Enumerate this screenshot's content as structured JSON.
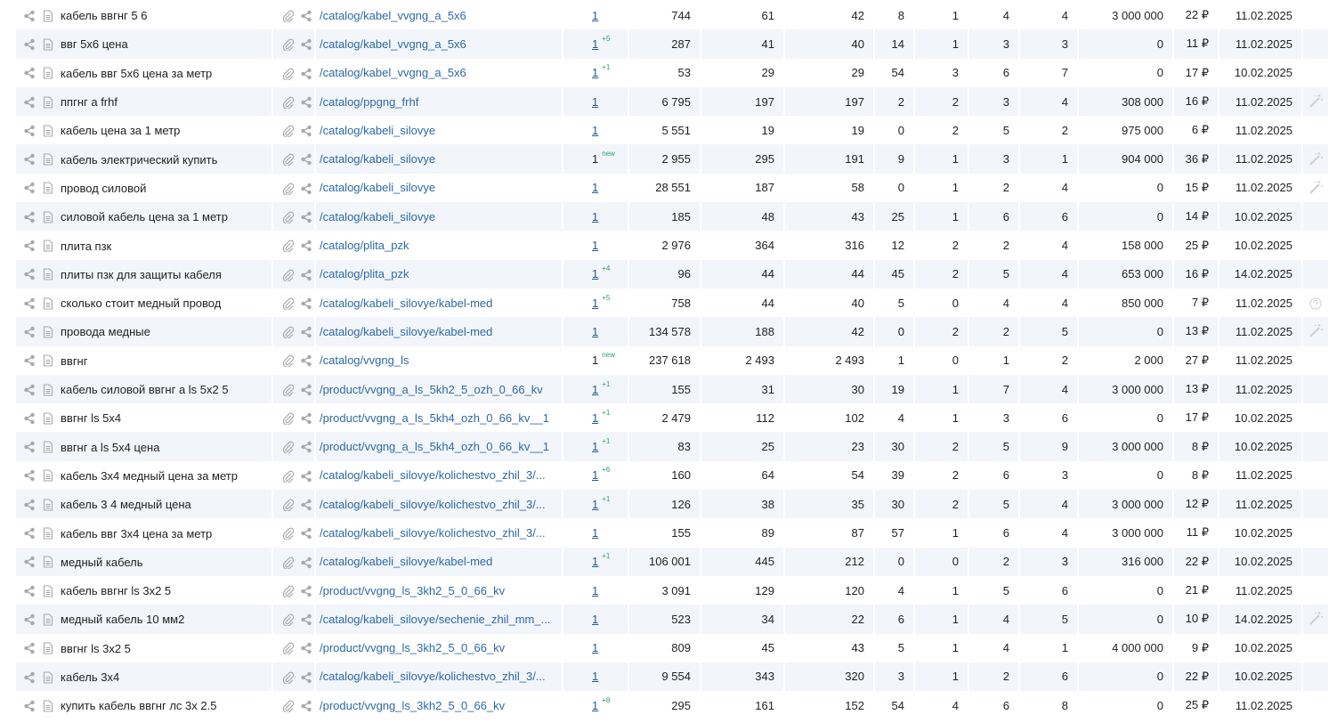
{
  "rows": [
    {
      "keyword": "кабель ввгнг 5 6",
      "url": "/catalog/kabel_vvgng_a_5x6",
      "pos": "1",
      "pos_link": true,
      "delta": "",
      "c1": "744",
      "c2": "61",
      "c3": "42",
      "c4": "8",
      "c5": "1",
      "c6": "4",
      "c7": "4",
      "c8": "3 000 000",
      "price": "22 ₽",
      "date": "11.02.2025",
      "extra": ""
    },
    {
      "keyword": "ввг 5х6 цена",
      "url": "/catalog/kabel_vvgng_a_5x6",
      "pos": "1",
      "pos_link": true,
      "delta": "+5",
      "c1": "287",
      "c2": "41",
      "c3": "40",
      "c4": "14",
      "c5": "1",
      "c6": "3",
      "c7": "3",
      "c8": "0",
      "price": "11 ₽",
      "date": "11.02.2025",
      "extra": ""
    },
    {
      "keyword": "кабель ввг 5х6 цена за метр",
      "url": "/catalog/kabel_vvgng_a_5x6",
      "pos": "1",
      "pos_link": true,
      "delta": "+1",
      "c1": "53",
      "c2": "29",
      "c3": "29",
      "c4": "54",
      "c5": "3",
      "c6": "6",
      "c7": "7",
      "c8": "0",
      "price": "17 ₽",
      "date": "10.02.2025",
      "extra": ""
    },
    {
      "keyword": "ппгнг а frhf",
      "url": "/catalog/ppgng_frhf",
      "pos": "1",
      "pos_link": true,
      "delta": "",
      "c1": "6 795",
      "c2": "197",
      "c3": "197",
      "c4": "2",
      "c5": "2",
      "c6": "3",
      "c7": "4",
      "c8": "308 000",
      "price": "16 ₽",
      "date": "11.02.2025",
      "extra": "wand"
    },
    {
      "keyword": "кабель цена за 1 метр",
      "url": "/catalog/kabeli_silovye",
      "pos": "1",
      "pos_link": true,
      "delta": "",
      "c1": "5 551",
      "c2": "19",
      "c3": "19",
      "c4": "0",
      "c5": "2",
      "c6": "5",
      "c7": "2",
      "c8": "975 000",
      "price": "6 ₽",
      "date": "11.02.2025",
      "extra": ""
    },
    {
      "keyword": "кабель электрический купить",
      "url": "/catalog/kabeli_silovye",
      "pos": "1",
      "pos_link": false,
      "delta": "new",
      "c1": "2 955",
      "c2": "295",
      "c3": "191",
      "c4": "9",
      "c5": "1",
      "c6": "3",
      "c7": "1",
      "c8": "904 000",
      "price": "36 ₽",
      "date": "11.02.2025",
      "extra": "wand"
    },
    {
      "keyword": "провод силовой",
      "url": "/catalog/kabeli_silovye",
      "pos": "1",
      "pos_link": true,
      "delta": "",
      "c1": "28 551",
      "c2": "187",
      "c3": "58",
      "c4": "0",
      "c5": "1",
      "c6": "2",
      "c7": "4",
      "c8": "0",
      "price": "15 ₽",
      "date": "11.02.2025",
      "extra": "wand"
    },
    {
      "keyword": "силовой кабель цена за 1 метр",
      "url": "/catalog/kabeli_silovye",
      "pos": "1",
      "pos_link": true,
      "delta": "",
      "c1": "185",
      "c2": "48",
      "c3": "43",
      "c4": "25",
      "c5": "1",
      "c6": "6",
      "c7": "6",
      "c8": "0",
      "price": "14 ₽",
      "date": "10.02.2025",
      "extra": ""
    },
    {
      "keyword": "плита пзк",
      "url": "/catalog/plita_pzk",
      "pos": "1",
      "pos_link": true,
      "delta": "",
      "c1": "2 976",
      "c2": "364",
      "c3": "316",
      "c4": "12",
      "c5": "2",
      "c6": "2",
      "c7": "4",
      "c8": "158 000",
      "price": "25 ₽",
      "date": "10.02.2025",
      "extra": ""
    },
    {
      "keyword": "плиты пзк для защиты кабеля",
      "url": "/catalog/plita_pzk",
      "pos": "1",
      "pos_link": true,
      "delta": "+4",
      "c1": "96",
      "c2": "44",
      "c3": "44",
      "c4": "45",
      "c5": "2",
      "c6": "5",
      "c7": "4",
      "c8": "653 000",
      "price": "16 ₽",
      "date": "14.02.2025",
      "extra": ""
    },
    {
      "keyword": "сколько стоит медный провод",
      "url": "/catalog/kabeli_silovye/kabel-med",
      "pos": "1",
      "pos_link": true,
      "delta": "+5",
      "c1": "758",
      "c2": "44",
      "c3": "40",
      "c4": "5",
      "c5": "0",
      "c6": "4",
      "c7": "4",
      "c8": "850 000",
      "price": "7 ₽",
      "date": "11.02.2025",
      "extra": "help"
    },
    {
      "keyword": "провода медные",
      "url": "/catalog/kabeli_silovye/kabel-med",
      "pos": "1",
      "pos_link": true,
      "delta": "",
      "c1": "134 578",
      "c2": "188",
      "c3": "42",
      "c4": "0",
      "c5": "2",
      "c6": "2",
      "c7": "5",
      "c8": "0",
      "price": "13 ₽",
      "date": "11.02.2025",
      "extra": "wand"
    },
    {
      "keyword": "ввгнг",
      "url": "/catalog/vvgng_ls",
      "pos": "1",
      "pos_link": false,
      "delta": "new",
      "c1": "237 618",
      "c2": "2 493",
      "c3": "2 493",
      "c4": "1",
      "c5": "0",
      "c6": "1",
      "c7": "2",
      "c8": "2 000",
      "price": "27 ₽",
      "date": "11.02.2025",
      "extra": ""
    },
    {
      "keyword": "кабель силовой ввгнг а ls 5х2 5",
      "url": "/product/vvgng_a_ls_5kh2_5_ozh_0_66_kv",
      "pos": "1",
      "pos_link": true,
      "delta": "+1",
      "c1": "155",
      "c2": "31",
      "c3": "30",
      "c4": "19",
      "c5": "1",
      "c6": "7",
      "c7": "4",
      "c8": "3 000 000",
      "price": "13 ₽",
      "date": "11.02.2025",
      "extra": ""
    },
    {
      "keyword": "ввгнг ls 5х4",
      "url": "/product/vvgng_a_ls_5kh4_ozh_0_66_kv__1",
      "pos": "1",
      "pos_link": true,
      "delta": "+1",
      "c1": "2 479",
      "c2": "112",
      "c3": "102",
      "c4": "4",
      "c5": "1",
      "c6": "3",
      "c7": "6",
      "c8": "0",
      "price": "17 ₽",
      "date": "10.02.2025",
      "extra": ""
    },
    {
      "keyword": "ввгнг а ls 5х4 цена",
      "url": "/product/vvgng_a_ls_5kh4_ozh_0_66_kv__1",
      "pos": "1",
      "pos_link": true,
      "delta": "+1",
      "c1": "83",
      "c2": "25",
      "c3": "23",
      "c4": "30",
      "c5": "2",
      "c6": "5",
      "c7": "9",
      "c8": "3 000 000",
      "price": "8 ₽",
      "date": "10.02.2025",
      "extra": ""
    },
    {
      "keyword": "кабель 3х4 медный цена за метр",
      "url": "/catalog/kabeli_silovye/kolichestvo_zhil_3/...",
      "pos": "1",
      "pos_link": true,
      "delta": "+6",
      "c1": "160",
      "c2": "64",
      "c3": "54",
      "c4": "39",
      "c5": "2",
      "c6": "6",
      "c7": "3",
      "c8": "0",
      "price": "8 ₽",
      "date": "11.02.2025",
      "extra": ""
    },
    {
      "keyword": "кабель 3 4 медный цена",
      "url": "/catalog/kabeli_silovye/kolichestvo_zhil_3/...",
      "pos": "1",
      "pos_link": true,
      "delta": "+1",
      "c1": "126",
      "c2": "38",
      "c3": "35",
      "c4": "30",
      "c5": "2",
      "c6": "5",
      "c7": "4",
      "c8": "3 000 000",
      "price": "12 ₽",
      "date": "11.02.2025",
      "extra": ""
    },
    {
      "keyword": "кабель ввг 3х4 цена за метр",
      "url": "/catalog/kabeli_silovye/kolichestvo_zhil_3/...",
      "pos": "1",
      "pos_link": true,
      "delta": "",
      "c1": "155",
      "c2": "89",
      "c3": "87",
      "c4": "57",
      "c5": "1",
      "c6": "6",
      "c7": "4",
      "c8": "3 000 000",
      "price": "11 ₽",
      "date": "10.02.2025",
      "extra": ""
    },
    {
      "keyword": "медный кабель",
      "url": "/catalog/kabeli_silovye/kabel-med",
      "pos": "1",
      "pos_link": true,
      "delta": "+1",
      "c1": "106 001",
      "c2": "445",
      "c3": "212",
      "c4": "0",
      "c5": "0",
      "c6": "2",
      "c7": "3",
      "c8": "316 000",
      "price": "22 ₽",
      "date": "10.02.2025",
      "extra": ""
    },
    {
      "keyword": "кабель ввгнг ls 3х2 5",
      "url": "/product/vvgng_ls_3kh2_5_0_66_kv",
      "pos": "1",
      "pos_link": true,
      "delta": "",
      "c1": "3 091",
      "c2": "129",
      "c3": "120",
      "c4": "4",
      "c5": "1",
      "c6": "5",
      "c7": "6",
      "c8": "0",
      "price": "21 ₽",
      "date": "11.02.2025",
      "extra": ""
    },
    {
      "keyword": "медный кабель 10 мм2",
      "url": "/catalog/kabeli_silovye/sechenie_zhil_mm_...",
      "pos": "1",
      "pos_link": true,
      "delta": "",
      "c1": "523",
      "c2": "34",
      "c3": "22",
      "c4": "6",
      "c5": "1",
      "c6": "4",
      "c7": "5",
      "c8": "0",
      "price": "10 ₽",
      "date": "14.02.2025",
      "extra": "wand"
    },
    {
      "keyword": "ввгнг ls 3х2 5",
      "url": "/product/vvgng_ls_3kh2_5_0_66_kv",
      "pos": "1",
      "pos_link": true,
      "delta": "",
      "c1": "809",
      "c2": "45",
      "c3": "43",
      "c4": "5",
      "c5": "1",
      "c6": "4",
      "c7": "1",
      "c8": "4 000 000",
      "price": "9 ₽",
      "date": "10.02.2025",
      "extra": ""
    },
    {
      "keyword": "кабель 3х4",
      "url": "/catalog/kabeli_silovye/kolichestvo_zhil_3/...",
      "pos": "1",
      "pos_link": true,
      "delta": "",
      "c1": "9 554",
      "c2": "343",
      "c3": "320",
      "c4": "3",
      "c5": "1",
      "c6": "2",
      "c7": "6",
      "c8": "0",
      "price": "22 ₽",
      "date": "10.02.2025",
      "extra": ""
    },
    {
      "keyword": "купить кабель ввгнг лс 3х 2.5",
      "url": "/product/vvgng_ls_3kh2_5_0_66_kv",
      "pos": "1",
      "pos_link": true,
      "delta": "+8",
      "c1": "295",
      "c2": "161",
      "c3": "152",
      "c4": "54",
      "c5": "4",
      "c6": "6",
      "c7": "8",
      "c8": "0",
      "price": "25 ₽",
      "date": "11.02.2025",
      "extra": ""
    }
  ],
  "icons": {
    "share": "share-icon",
    "doc": "document-icon",
    "clip": "paperclip-icon",
    "wand": "magic-wand-icon",
    "help": "help-circle-icon"
  },
  "colors": {
    "link": "#2c6aa6",
    "delta": "#2e9e6a",
    "alt_row": "#f2f5f9",
    "icon": "#a9a9a9"
  }
}
